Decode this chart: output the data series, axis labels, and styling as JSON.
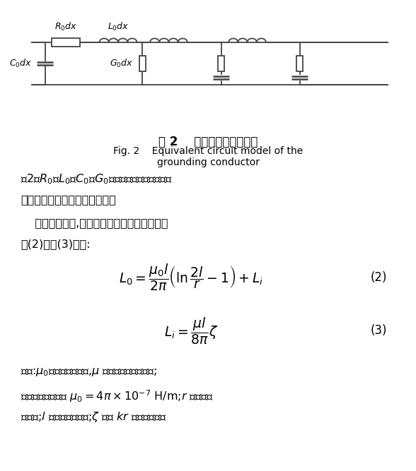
{
  "fig_title_cn": "图 2    接地体等效电路模型",
  "fig_title_en": "Fig. 2    Equivalent circuit model of the",
  "fig_title_en2": "grounding conductor",
  "bg_color": "#ffffff",
  "text_color": "#000000",
  "circuit_color": "#444444"
}
